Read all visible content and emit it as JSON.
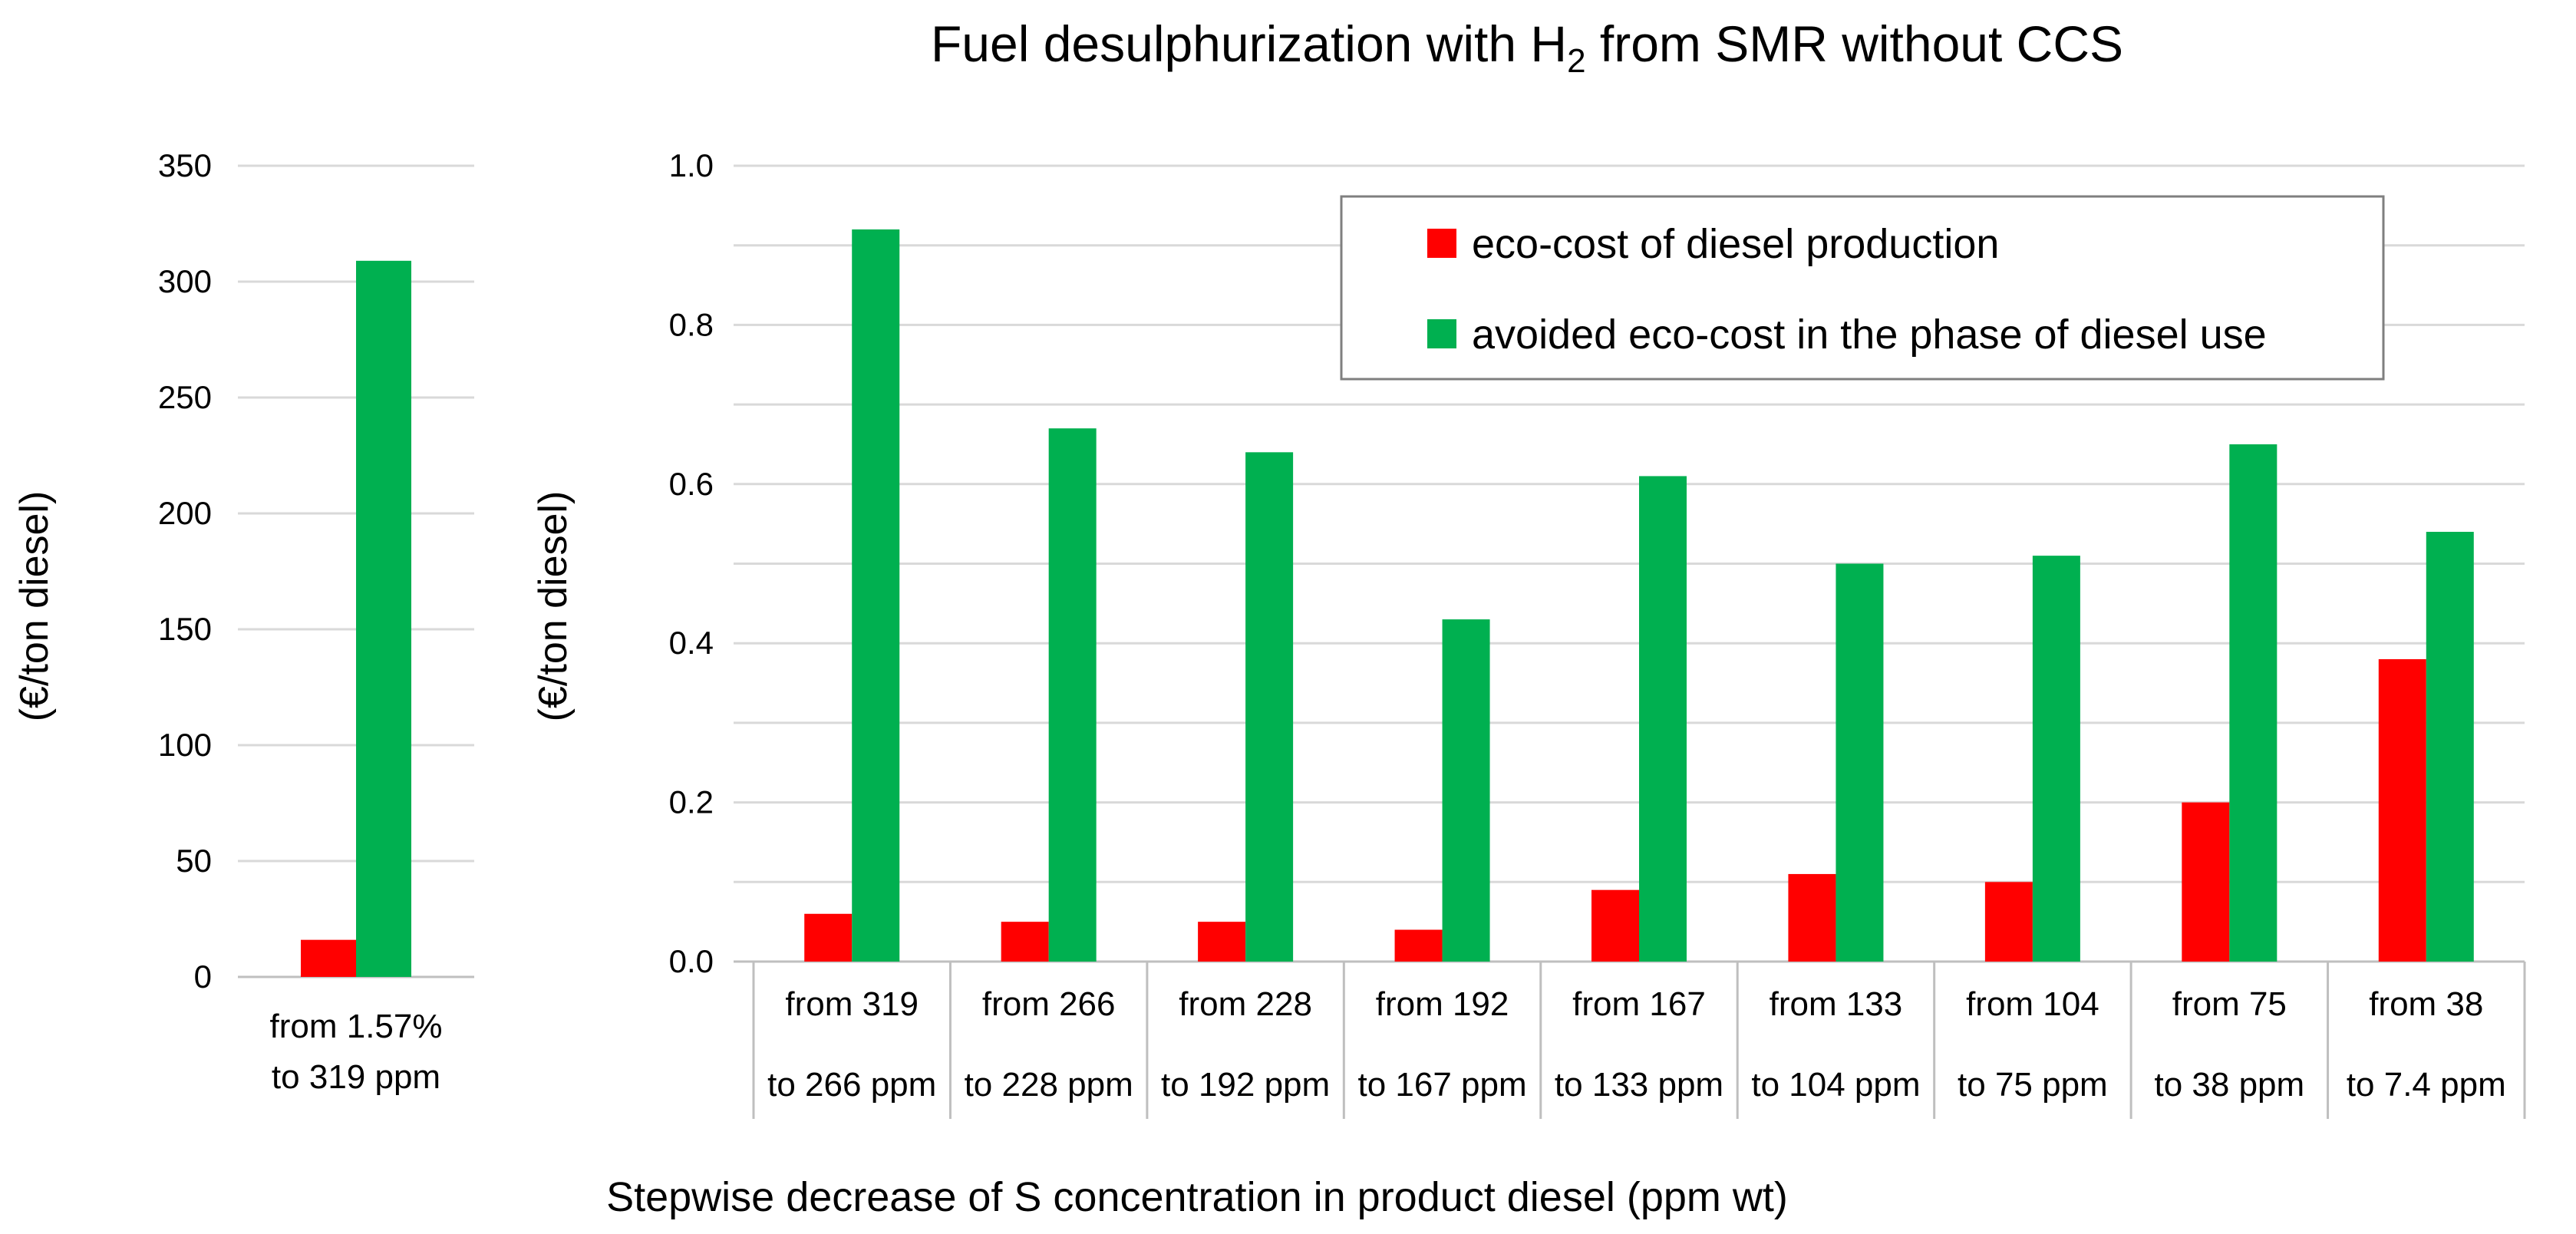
{
  "title": {
    "prefix": "Fuel desulphurization with H",
    "subscript": "2",
    "suffix": " from SMR without CCS"
  },
  "legend": {
    "items": [
      {
        "label": "eco-cost of diesel production",
        "color": "#ff0000"
      },
      {
        "label": "avoided eco-cost in the phase of diesel use",
        "color": "#00b050"
      }
    ]
  },
  "xlabel": "Stepwise decrease of S concentration in product diesel (ppm wt)",
  "colors": {
    "production": "#ff0000",
    "avoided": "#00b050",
    "grid": "#d9d9d9",
    "axis": "#bfbfbf",
    "legend_border": "#7f7f7f"
  },
  "chart_data": [
    {
      "type": "bar",
      "ylabel": "(€/ton diesel)",
      "ylim": [
        0,
        350
      ],
      "yticks": [
        0,
        50,
        100,
        150,
        200,
        250,
        300,
        350
      ],
      "ytick_labels": [
        "0",
        "50",
        "100",
        "150",
        "200",
        "250",
        "300",
        "350"
      ],
      "categories": [
        {
          "line1": "from 1.57%",
          "line2": "to 319 ppm"
        }
      ],
      "series": [
        {
          "name": "eco-cost of diesel production",
          "values": [
            16
          ]
        },
        {
          "name": "avoided eco-cost in the phase of diesel use",
          "values": [
            309
          ]
        }
      ]
    },
    {
      "type": "bar",
      "ylabel": "(€/ton diesel)",
      "ylim": [
        0,
        1.0
      ],
      "yticks": [
        0,
        0.2,
        0.4,
        0.6,
        0.8,
        1.0
      ],
      "ytick_labels": [
        "0.0",
        "0.2",
        "0.4",
        "0.6",
        "0.8",
        "1.0"
      ],
      "categories": [
        {
          "line1": "from 319",
          "line2": "to 266 ppm"
        },
        {
          "line1": "from 266",
          "line2": "to 228 ppm"
        },
        {
          "line1": "from 228",
          "line2": "to 192 ppm"
        },
        {
          "line1": "from 192",
          "line2": "to 167 ppm"
        },
        {
          "line1": "from 167",
          "line2": "to 133 ppm"
        },
        {
          "line1": "from 133",
          "line2": "to 104 ppm"
        },
        {
          "line1": "from 104",
          "line2": "to 75 ppm"
        },
        {
          "line1": "from 75",
          "line2": "to 38 ppm"
        },
        {
          "line1": "from 38",
          "line2": "to 7.4 ppm"
        }
      ],
      "series": [
        {
          "name": "eco-cost of diesel production",
          "values": [
            0.06,
            0.05,
            0.05,
            0.04,
            0.09,
            0.11,
            0.1,
            0.2,
            0.38
          ]
        },
        {
          "name": "avoided eco-cost in the phase of diesel use",
          "values": [
            0.92,
            0.67,
            0.64,
            0.43,
            0.61,
            0.5,
            0.51,
            0.65,
            0.54
          ]
        }
      ]
    }
  ]
}
